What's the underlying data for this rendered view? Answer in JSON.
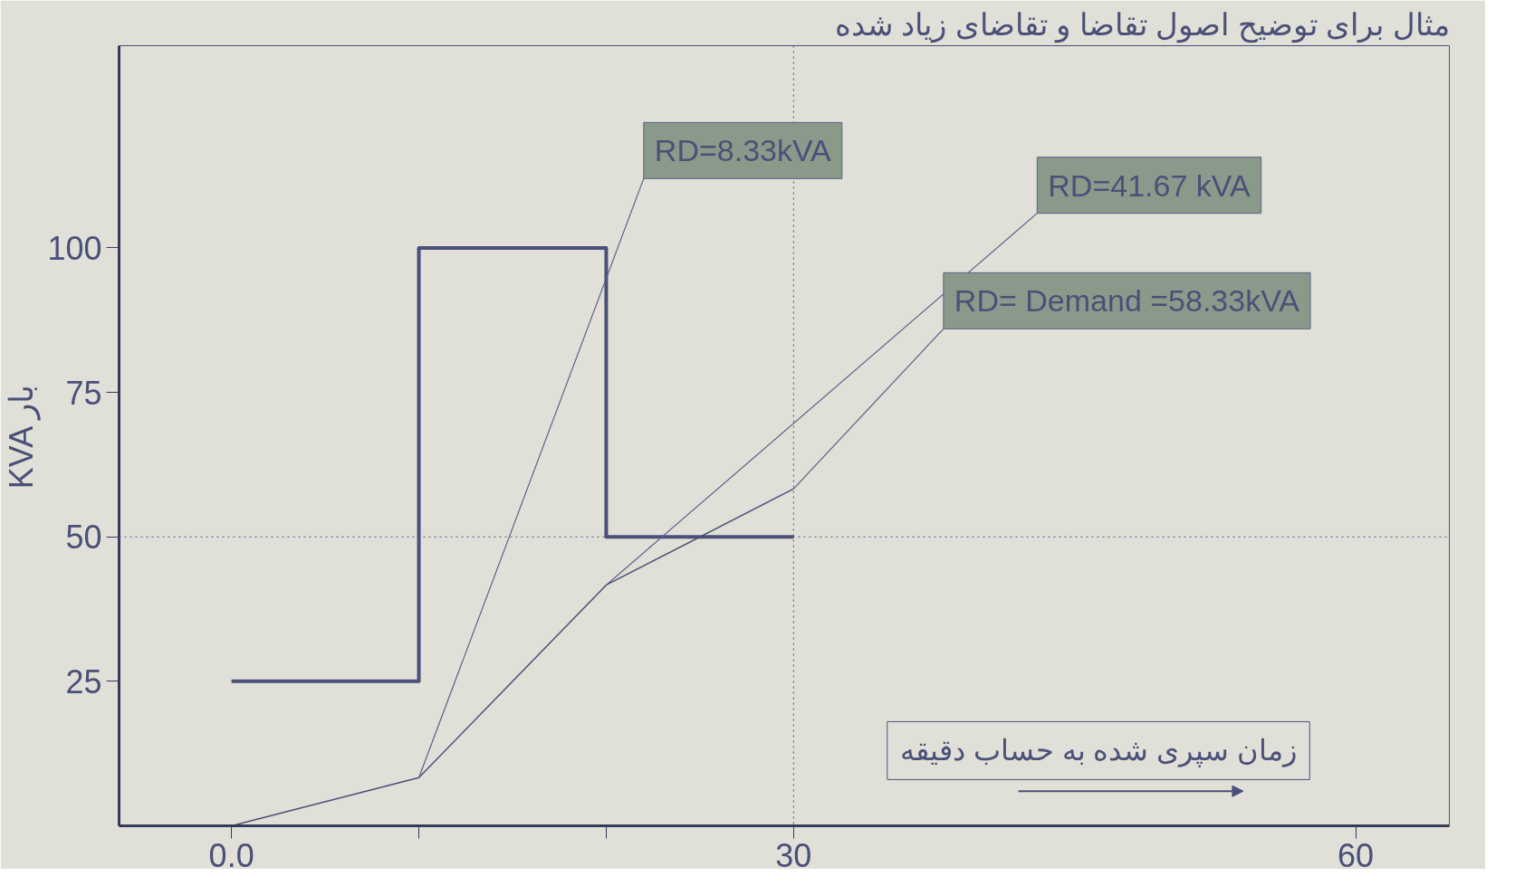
{
  "chart_data": {
    "type": "line",
    "title": "مثال برای توضیح اصول تقاضا و تقاضای زیاد شده",
    "xlabel": "زمان سپری شده به حساب دقیقه",
    "ylabel": "KVA بار",
    "series": [
      {
        "type": "step",
        "color": "#4a5078",
        "x": [
          0,
          10,
          20,
          30
        ],
        "values": [
          25,
          100,
          50,
          50
        ]
      },
      {
        "color": "#4a5078",
        "x": [
          0,
          10,
          20,
          30
        ],
        "values": [
          0,
          8.33,
          41.67,
          58.33
        ]
      }
    ],
    "xlim": [
      -6,
      65
    ],
    "ylim": [
      0,
      135
    ],
    "xticks": [
      {
        "value": 0,
        "label": "0.0"
      },
      {
        "value": 10,
        "label": null
      },
      {
        "value": 20,
        "label": null
      },
      30,
      60
    ],
    "yticks": [
      25,
      50,
      75,
      100
    ],
    "ref_lines": [
      {
        "axis": "y",
        "value": 50,
        "line_style": "dotted"
      },
      {
        "axis": "x",
        "value": 30,
        "line_style": "dotted"
      }
    ],
    "annotations": [
      {
        "text": "RD=8.33kVA",
        "x": 10,
        "y": 8.33
      },
      {
        "text": "RD=41.67 kVA",
        "x": 20,
        "y": 41.67
      },
      {
        "text": "RD= Demand =58.33kVA",
        "x": 30,
        "y": 58.33
      }
    ],
    "grid": false,
    "marker": "none",
    "line_style": "solid"
  }
}
